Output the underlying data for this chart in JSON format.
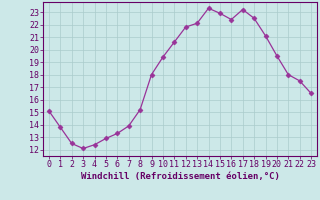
{
  "x": [
    0,
    1,
    2,
    3,
    4,
    5,
    6,
    7,
    8,
    9,
    10,
    11,
    12,
    13,
    14,
    15,
    16,
    17,
    18,
    19,
    20,
    21,
    22,
    23
  ],
  "y": [
    15.1,
    13.8,
    12.5,
    12.1,
    12.4,
    12.9,
    13.3,
    13.9,
    15.2,
    18.0,
    19.4,
    20.6,
    21.8,
    22.1,
    23.3,
    22.9,
    22.4,
    23.2,
    22.5,
    21.1,
    19.5,
    18.0,
    17.5,
    16.5
  ],
  "line_color": "#993399",
  "marker": "D",
  "marker_size": 2.5,
  "bg_color": "#cce8e8",
  "grid_color": "#aacccc",
  "xlabel": "Windchill (Refroidissement éolien,°C)",
  "xlabel_color": "#660066",
  "tick_color": "#660066",
  "axis_color": "#660066",
  "ylim": [
    11.5,
    23.8
  ],
  "xlim": [
    -0.5,
    23.5
  ],
  "yticks": [
    12,
    13,
    14,
    15,
    16,
    17,
    18,
    19,
    20,
    21,
    22,
    23
  ],
  "xticks": [
    0,
    1,
    2,
    3,
    4,
    5,
    6,
    7,
    8,
    9,
    10,
    11,
    12,
    13,
    14,
    15,
    16,
    17,
    18,
    19,
    20,
    21,
    22,
    23
  ],
  "xtick_labels": [
    "0",
    "1",
    "2",
    "3",
    "4",
    "5",
    "6",
    "7",
    "8",
    "9",
    "10",
    "11",
    "12",
    "13",
    "14",
    "15",
    "16",
    "17",
    "18",
    "19",
    "20",
    "21",
    "22",
    "23"
  ],
  "ytick_labels": [
    "12",
    "13",
    "14",
    "15",
    "16",
    "17",
    "18",
    "19",
    "20",
    "21",
    "22",
    "23"
  ],
  "tick_fontsize": 6.0,
  "xlabel_fontsize": 6.5
}
